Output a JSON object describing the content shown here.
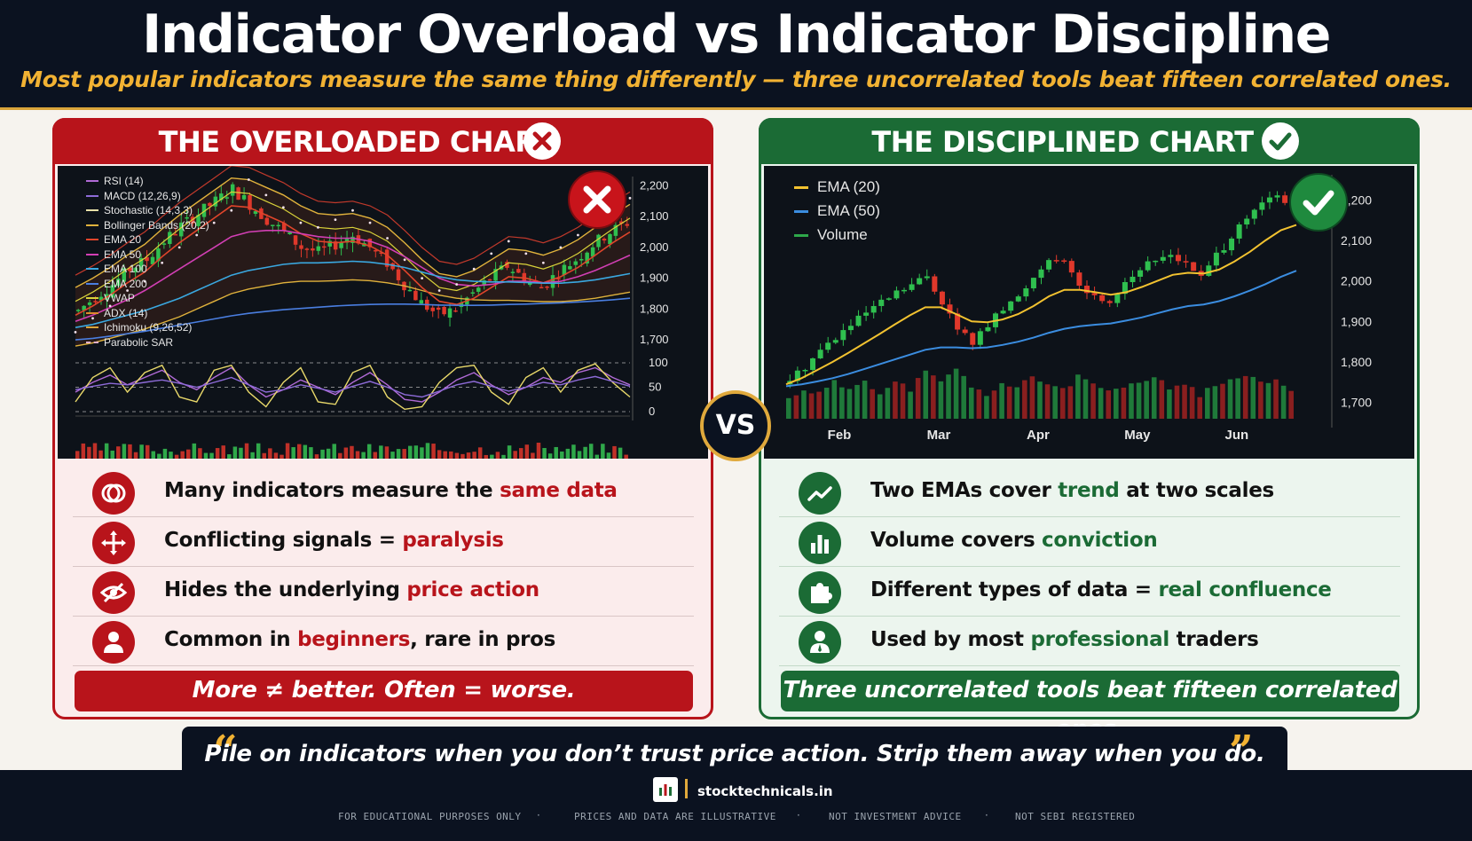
{
  "header": {
    "title": "Indicator Overload vs Indicator Discipline",
    "subtitle": "Most popular indicators measure the same thing differently — three uncorrelated tools beat fifteen correlated ones."
  },
  "left": {
    "title": "THE OVERLOADED CHART",
    "badge_icon": "x-circle-icon",
    "rows": [
      {
        "icon": "overlap-circles-icon",
        "pre": "Many indicators measure the ",
        "hl": "same data",
        "post": ""
      },
      {
        "icon": "arrows-cross-icon",
        "pre": "Conflicting signals = ",
        "hl": "paralysis",
        "post": ""
      },
      {
        "icon": "eye-slash-icon",
        "pre": "Hides the underlying ",
        "hl": "price action",
        "post": ""
      },
      {
        "icon": "user-icon",
        "pre": "Common in ",
        "hl": "beginners",
        "post": ", rare in pros"
      }
    ],
    "banner": "More ≠ better. Often = worse.",
    "color": "#b8141b"
  },
  "right": {
    "title": "THE DISCIPLINED CHART",
    "badge_icon": "check-circle-icon",
    "rows": [
      {
        "icon": "trend-line-icon",
        "pre": "Two EMAs cover ",
        "hl": "trend",
        "post": " at two scales"
      },
      {
        "icon": "bar-chart-icon",
        "pre": "Volume covers ",
        "hl": "conviction",
        "post": ""
      },
      {
        "icon": "puzzle-icon",
        "pre": "Different types of data = ",
        "hl": "real confluence",
        "post": ""
      },
      {
        "icon": "professional-user-icon",
        "pre": "Used by most ",
        "hl": "professional",
        "post": " traders"
      }
    ],
    "banner": "Three uncorrelated tools beat fifteen correlated ones.",
    "color": "#1b6b35"
  },
  "vs_label": "VS",
  "quote": {
    "text": "Pile on indicators when you don’t trust price action. Strip them away when you do.",
    "open_mark": "“",
    "close_mark": "”"
  },
  "footer": {
    "site": "stocktechnicals.in",
    "disclaimers": [
      "FOR EDUCATIONAL PURPOSES ONLY",
      "PRICES AND DATA ARE ILLUSTRATIVE",
      "NOT INVESTMENT ADVICE",
      "NOT SEBI REGISTERED"
    ],
    "separator": "·"
  },
  "chart_data": [
    {
      "type": "line",
      "title": "",
      "legend": [
        {
          "name": "RSI (14)",
          "color": "#b06ad6"
        },
        {
          "name": "MACD (12,26,9)",
          "color": "#8e6bd8"
        },
        {
          "name": "Stochastic (14,3,3)",
          "color": "#e8e0a8"
        },
        {
          "name": "Bollinger Bands (20,2)",
          "color": "#e0b23c"
        },
        {
          "name": "EMA 20",
          "color": "#e0452b"
        },
        {
          "name": "EMA 50",
          "color": "#d23fb4"
        },
        {
          "name": "EMA 100",
          "color": "#3aa8e0"
        },
        {
          "name": "EMA 200",
          "color": "#4a7ee0"
        },
        {
          "name": "VWAP",
          "color": "#d9d23a"
        },
        {
          "name": "ADX (14)",
          "color": "#e08a2b"
        },
        {
          "name": "Ichimoku (9,26,52)",
          "color": "#d9a43a"
        },
        {
          "name": "Parabolic SAR",
          "color": "#e0b0c8"
        }
      ],
      "price_ticks": [
        2200,
        2100,
        2000,
        1900,
        1800,
        1700
      ],
      "price_ylim": [
        1660,
        2230
      ],
      "osc_ticks": [
        100,
        50,
        0
      ],
      "osc_ylim": [
        0,
        100
      ],
      "close": [
        1795,
        1840,
        1880,
        1930,
        1960,
        2020,
        2070,
        2110,
        2150,
        2190,
        2140,
        2090,
        2050,
        2000,
        1985,
        2010,
        2040,
        2000,
        1950,
        1880,
        1820,
        1780,
        1800,
        1850,
        1900,
        1940,
        1900,
        1870,
        1920,
        1960,
        2010,
        2050,
        2080
      ],
      "series": [
        {
          "name": "EMA 20",
          "values": [
            1780,
            1810,
            1845,
            1885,
            1920,
            1970,
            2015,
            2055,
            2095,
            2135,
            2130,
            2105,
            2080,
            2045,
            2020,
            2015,
            2020,
            2005,
            1975,
            1925,
            1870,
            1825,
            1815,
            1835,
            1870,
            1905,
            1900,
            1885,
            1905,
            1935,
            1975,
            2015,
            2050
          ]
        },
        {
          "name": "EMA 50",
          "values": [
            1760,
            1780,
            1805,
            1830,
            1860,
            1895,
            1930,
            1965,
            2000,
            2035,
            2050,
            2055,
            2055,
            2045,
            2035,
            2030,
            2030,
            2020,
            2000,
            1970,
            1935,
            1900,
            1880,
            1875,
            1880,
            1890,
            1890,
            1885,
            1890,
            1905,
            1925,
            1950,
            1975
          ]
        },
        {
          "name": "EMA 100",
          "values": [
            1740,
            1750,
            1765,
            1780,
            1795,
            1815,
            1835,
            1860,
            1885,
            1910,
            1925,
            1935,
            1945,
            1950,
            1950,
            1952,
            1955,
            1952,
            1945,
            1935,
            1920,
            1905,
            1895,
            1890,
            1888,
            1888,
            1886,
            1884,
            1884,
            1888,
            1895,
            1905,
            1915
          ]
        },
        {
          "name": "EMA 200",
          "values": [
            1700,
            1705,
            1712,
            1720,
            1728,
            1738,
            1748,
            1758,
            1768,
            1778,
            1786,
            1792,
            1798,
            1802,
            1806,
            1810,
            1813,
            1815,
            1816,
            1816,
            1815,
            1813,
            1812,
            1812,
            1813,
            1815,
            1816,
            1818,
            1820,
            1823,
            1826,
            1830,
            1835
          ]
        }
      ],
      "oscillators": [
        {
          "name": "RSI (14)",
          "values": [
            40,
            60,
            75,
            55,
            70,
            85,
            60,
            45,
            70,
            90,
            55,
            30,
            45,
            65,
            50,
            35,
            60,
            80,
            55,
            25,
            20,
            40,
            65,
            80,
            55,
            35,
            50,
            70,
            60,
            80,
            90,
            70,
            55
          ]
        },
        {
          "name": "Stochastic (14,3,3)",
          "values": [
            20,
            70,
            90,
            40,
            80,
            95,
            30,
            20,
            85,
            95,
            40,
            10,
            60,
            90,
            20,
            15,
            80,
            95,
            30,
            5,
            10,
            60,
            90,
            95,
            40,
            15,
            70,
            90,
            40,
            85,
            98,
            60,
            30
          ]
        },
        {
          "name": "MACD (12,26,9)",
          "values": [
            45,
            52,
            58,
            55,
            60,
            65,
            58,
            50,
            60,
            70,
            55,
            40,
            45,
            55,
            48,
            40,
            52,
            62,
            50,
            35,
            30,
            42,
            55,
            62,
            52,
            42,
            50,
            60,
            55,
            65,
            72,
            62,
            52
          ]
        }
      ]
    },
    {
      "type": "line",
      "title": "",
      "legend": [
        {
          "name": "EMA (20)",
          "color": "#f2c230"
        },
        {
          "name": "EMA (50)",
          "color": "#3b8de0"
        },
        {
          "name": "Volume",
          "color": "#2ea84a"
        }
      ],
      "x_ticks": [
        "Feb",
        "Mar",
        "Apr",
        "May",
        "Jun"
      ],
      "y_ticks": [
        2200,
        2100,
        2000,
        1900,
        1800,
        1700
      ],
      "ylim": [
        1660,
        2240
      ],
      "close": [
        1755,
        1790,
        1830,
        1860,
        1890,
        1920,
        1945,
        1970,
        1990,
        2010,
        1950,
        1880,
        1850,
        1890,
        1930,
        1960,
        2010,
        2060,
        2040,
        1990,
        1960,
        1950,
        2000,
        2030,
        2050,
        2070,
        2040,
        2010,
        2060,
        2110,
        2150,
        2190,
        2210,
        2180
      ],
      "series": [
        {
          "name": "EMA (20)",
          "values": [
            1745,
            1760,
            1780,
            1800,
            1822,
            1845,
            1868,
            1892,
            1915,
            1935,
            1935,
            1918,
            1900,
            1898,
            1905,
            1918,
            1938,
            1962,
            1978,
            1978,
            1972,
            1966,
            1972,
            1985,
            2000,
            2015,
            2020,
            2018,
            2028,
            2048,
            2072,
            2100,
            2125,
            2138
          ]
        },
        {
          "name": "EMA (50)",
          "values": [
            1740,
            1745,
            1752,
            1760,
            1770,
            1782,
            1794,
            1806,
            1818,
            1830,
            1836,
            1836,
            1834,
            1836,
            1842,
            1850,
            1860,
            1872,
            1882,
            1888,
            1892,
            1895,
            1902,
            1910,
            1920,
            1930,
            1938,
            1942,
            1950,
            1962,
            1976,
            1992,
            2010,
            2025
          ]
        },
        {
          "name": "Volume",
          "values": [
            3,
            5,
            4,
            6,
            5,
            7,
            4,
            6,
            5,
            8,
            6,
            9,
            5,
            4,
            6,
            5,
            7,
            6,
            5,
            7,
            6,
            4,
            5,
            6,
            7,
            5,
            6,
            4,
            5,
            7,
            8,
            6,
            7,
            5
          ]
        }
      ]
    }
  ]
}
